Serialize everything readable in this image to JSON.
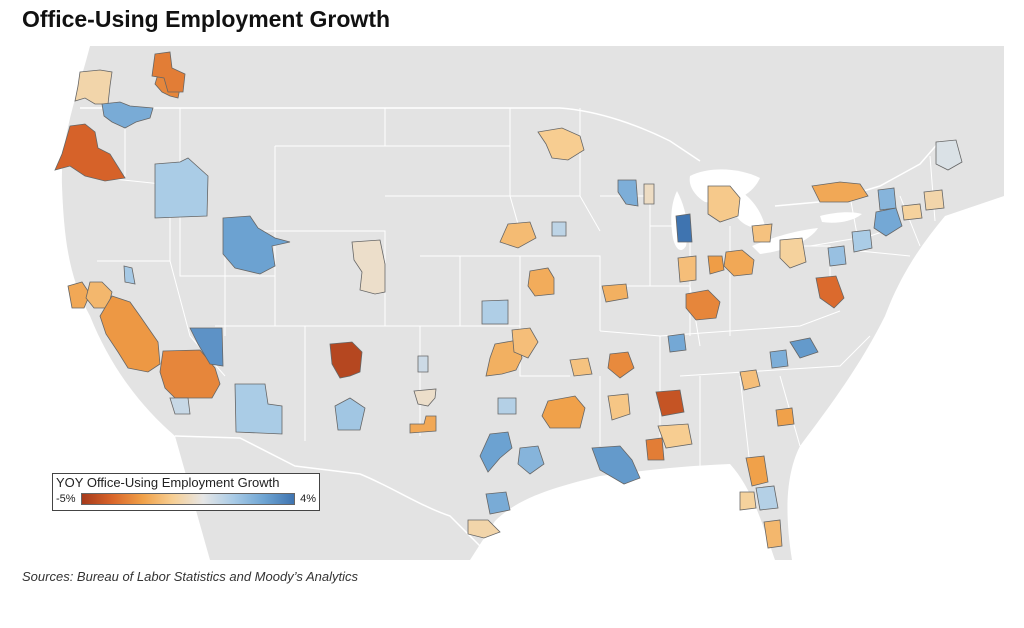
{
  "title": "Office-Using Employment Growth",
  "legend": {
    "title": "YOY Office-Using Employment Growth",
    "min_label": "-5%",
    "max_label": "4%",
    "min_value": -5,
    "max_value": 4,
    "colors": [
      "#a5391b",
      "#d9652a",
      "#f0a048",
      "#f7cf94",
      "#e6e6e6",
      "#a9cbe6",
      "#6fa5d3",
      "#3f74b0"
    ]
  },
  "source": "Sources: Bureau of Labor Statistics and Moody’s Analytics",
  "map": {
    "land_color": "#e3e3e3",
    "water_color": "#ffffff",
    "border_color": "#ffffff",
    "metros": [
      {
        "id": "seattle-metro",
        "growth": -3.0
      },
      {
        "id": "wa-north-metro",
        "growth": -0.8
      },
      {
        "id": "spokane-metro",
        "growth": -3.2
      },
      {
        "id": "tri-cities-metro",
        "growth": 2.5
      },
      {
        "id": "portland-metro",
        "growth": -3.8
      },
      {
        "id": "boise-metro",
        "growth": 1.4
      },
      {
        "id": "salt-lake-metro",
        "growth": 2.8
      },
      {
        "id": "reno-metro",
        "growth": 1.5
      },
      {
        "id": "sacramento-metro",
        "growth": -2.2
      },
      {
        "id": "bay-area-metro",
        "growth": -1.8
      },
      {
        "id": "central-valley-metro",
        "growth": -2.6
      },
      {
        "id": "la-metro",
        "growth": -3.0
      },
      {
        "id": "san-diego-metro",
        "growth": 0.8
      },
      {
        "id": "las-vegas-metro",
        "growth": 3.2
      },
      {
        "id": "phoenix-metro",
        "growth": 1.4
      },
      {
        "id": "albuquerque-metro",
        "growth": -4.6
      },
      {
        "id": "colorado-springs-metro",
        "growth": -0.3
      },
      {
        "id": "tucson-metro",
        "growth": 1.6
      },
      {
        "id": "el-paso-metro",
        "growth": 0.7
      },
      {
        "id": "lubbock-metro",
        "growth": -0.3
      },
      {
        "id": "midland-metro",
        "growth": -2.2
      },
      {
        "id": "oklahoma-city-metro",
        "growth": -2.0
      },
      {
        "id": "tulsa-metro",
        "growth": -1.6
      },
      {
        "id": "wichita-metro",
        "growth": 1.3
      },
      {
        "id": "kansas-city-metro",
        "growth": -2.1
      },
      {
        "id": "omaha-metro",
        "growth": -1.7
      },
      {
        "id": "des-moines-metro",
        "growth": 1.0
      },
      {
        "id": "minneapolis-metro",
        "growth": -1.2
      },
      {
        "id": "madison-metro",
        "growth": 2.4
      },
      {
        "id": "milwaukee-metro",
        "growth": -0.4
      },
      {
        "id": "chicago-metro",
        "growth": 4.0
      },
      {
        "id": "detroit-metro",
        "growth": -1.3
      },
      {
        "id": "cleveland-metro",
        "growth": -1.5
      },
      {
        "id": "pittsburgh-metro",
        "growth": -1.0
      },
      {
        "id": "columbus-metro",
        "growth": -2.2
      },
      {
        "id": "cincinnati-metro",
        "growth": -2.5
      },
      {
        "id": "indianapolis-metro",
        "growth": -1.6
      },
      {
        "id": "st-louis-metro",
        "growth": -2.0
      },
      {
        "id": "louisville-metro",
        "growth": -3.0
      },
      {
        "id": "nashville-metro",
        "growth": 2.6
      },
      {
        "id": "memphis-metro",
        "growth": -2.9
      },
      {
        "id": "little-rock-metro",
        "growth": -1.5
      },
      {
        "id": "dallas-metro",
        "growth": -2.4
      },
      {
        "id": "austin-metro",
        "growth": 2.8
      },
      {
        "id": "houston-metro",
        "growth": 2.2
      },
      {
        "id": "san-antonio-metro",
        "growth": 2.5
      },
      {
        "id": "corpus-christi-metro",
        "growth": -0.8
      },
      {
        "id": "shreveport-metro",
        "growth": 1.2
      },
      {
        "id": "baton-rouge-metro",
        "growth": -1.4
      },
      {
        "id": "new-orleans-metro",
        "growth": 3.0
      },
      {
        "id": "jackson-metro",
        "growth": -3.2
      },
      {
        "id": "mobile-metro",
        "growth": -4.2
      },
      {
        "id": "birmingham-metro",
        "growth": -1.2
      },
      {
        "id": "atlanta-metro",
        "growth": -1.6
      },
      {
        "id": "charlotte-metro",
        "growth": 2.4
      },
      {
        "id": "raleigh-metro",
        "growth": 3.0
      },
      {
        "id": "richmond-metro",
        "growth": -3.6
      },
      {
        "id": "dc-metro",
        "growth": 1.8
      },
      {
        "id": "philadelphia-metro",
        "growth": 1.4
      },
      {
        "id": "new-york-metro",
        "growth": 2.6
      },
      {
        "id": "hartford-metro",
        "growth": -1.0
      },
      {
        "id": "boston-metro",
        "growth": -0.8
      },
      {
        "id": "buffalo-metro",
        "growth": -2.2
      },
      {
        "id": "albany-metro",
        "growth": 2.2
      },
      {
        "id": "maine-metro",
        "growth": 0.4
      },
      {
        "id": "jacksonville-metro",
        "growth": -2.4
      },
      {
        "id": "orlando-metro",
        "growth": 1.2
      },
      {
        "id": "tampa-metro",
        "growth": -1.0
      },
      {
        "id": "miami-metro",
        "growth": -1.8
      },
      {
        "id": "charleston-metro",
        "growth": -2.4
      }
    ]
  }
}
